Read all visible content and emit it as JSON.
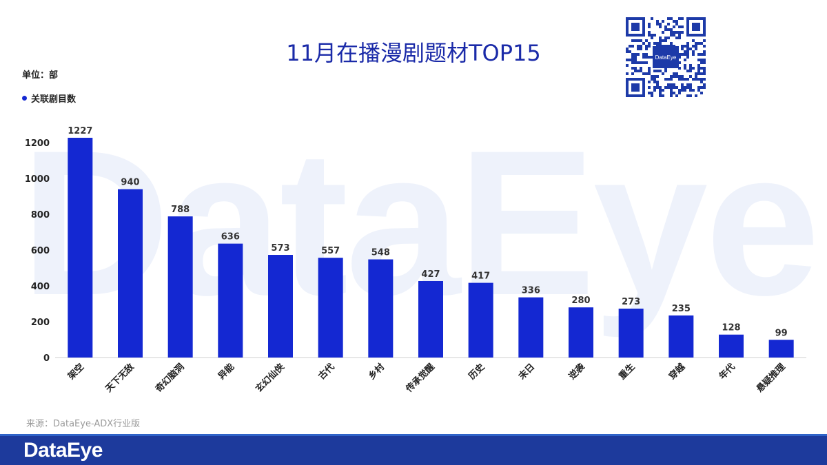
{
  "title": "11月在播漫剧题材TOP15",
  "unit_label": "单位：部",
  "source": "来源：DataEye-ADX行业版",
  "brand": "DataEye",
  "qr_logo": "DataEye",
  "colors": {
    "bar": "#1428d2",
    "title": "#1a2aa8",
    "footer": "#1d3a9c"
  },
  "chart_data": {
    "type": "bar",
    "title": "11月在播漫剧题材TOP15",
    "ylabel": "单位：部",
    "ylim": [
      0,
      1200
    ],
    "yticks": [
      0,
      200,
      400,
      600,
      800,
      1000,
      1200
    ],
    "grid": false,
    "legend_position": "top-left",
    "categories": [
      "架空",
      "天下无敌",
      "奇幻脑洞",
      "异能",
      "玄幻仙侠",
      "古代",
      "乡村",
      "传承觉醒",
      "历史",
      "末日",
      "逆袭",
      "重生",
      "穿越",
      "年代",
      "悬疑推理"
    ],
    "series": [
      {
        "name": "关联剧目数",
        "values": [
          1227,
          940,
          788,
          636,
          573,
          557,
          548,
          427,
          417,
          336,
          280,
          273,
          235,
          128,
          99
        ]
      }
    ]
  }
}
